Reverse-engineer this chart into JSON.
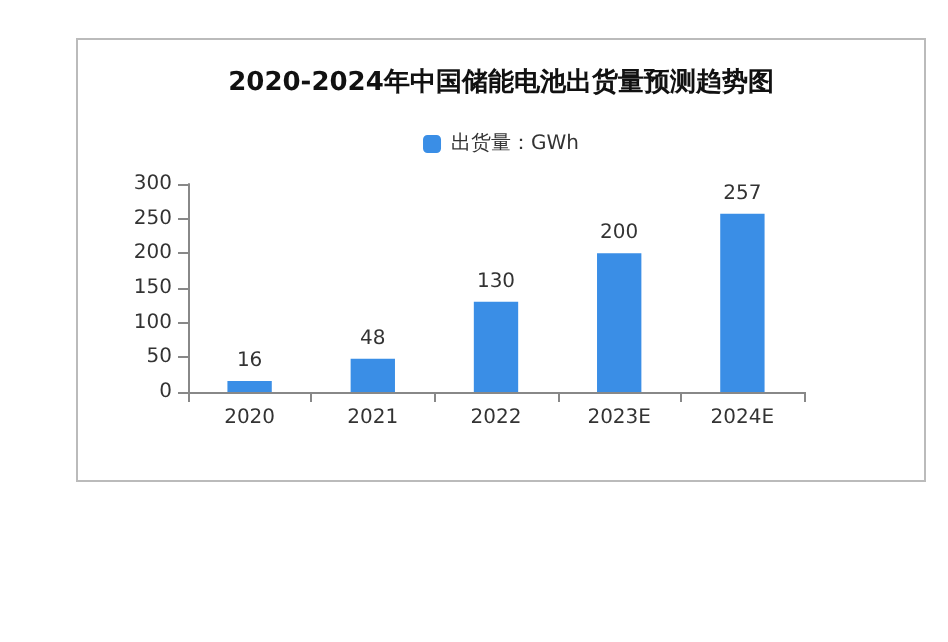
{
  "chart_data": {
    "type": "bar",
    "title": "2020-2024年中国储能电池出货量预测趋势图",
    "categories": [
      "2020",
      "2021",
      "2022",
      "2023E",
      "2024E"
    ],
    "series": [
      {
        "name": "出货量：GWh",
        "color": "#3a8ee6",
        "values": [
          16,
          48,
          130,
          200,
          257
        ]
      }
    ],
    "ylim": [
      0,
      300
    ],
    "yticks": [
      0,
      50,
      100,
      150,
      200,
      250,
      300
    ],
    "grid": false,
    "legend": "top",
    "data_labels": true
  }
}
